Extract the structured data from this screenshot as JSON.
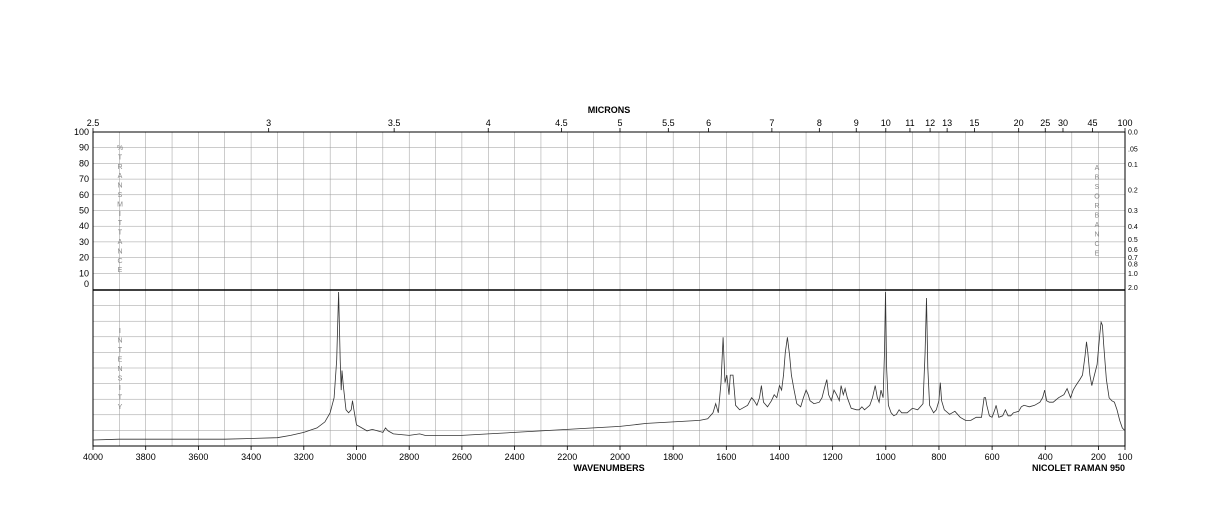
{
  "chart_data": {
    "type": "line",
    "title": "",
    "top_axis_label": "MICRONS",
    "xlabel": "WAVENUMBERS",
    "instrument": "NICOLET RAMAN 950",
    "upper_left_label": "% TRANSMITTANCE",
    "upper_right_label": "ABSORBANCE",
    "lower_left_label": "INTENSITY",
    "xlim": [
      4000,
      100
    ],
    "x_axis_scale": "linear in wavenumber, split scale (4000-2000 and 2000-100)",
    "x_ticks": [
      4000,
      3800,
      3600,
      3400,
      3200,
      3000,
      2800,
      2600,
      2400,
      2200,
      2000,
      1800,
      1600,
      1400,
      1200,
      1000,
      800,
      600,
      400,
      200,
      100
    ],
    "x_tick_labels": [
      "4000",
      "3800",
      "3600",
      "3400",
      "3200",
      "3000",
      "2800",
      "2600",
      "2400",
      "2200",
      "2000",
      "1800",
      "1600",
      "1400",
      "1200",
      "1000",
      "800",
      "600",
      "400",
      "200",
      "100"
    ],
    "micron_ticks": [
      "2.5",
      "3",
      "3.5",
      "4",
      "4.5",
      "5",
      "5.5",
      "6",
      "7",
      "8",
      "9",
      "10",
      "11",
      "12",
      "13",
      "15",
      "20",
      "25",
      "30",
      "45",
      "100"
    ],
    "micron_values": [
      2.5,
      3,
      3.5,
      4,
      4.5,
      5,
      5.5,
      6,
      7,
      8,
      9,
      10,
      11,
      12,
      13,
      15,
      20,
      25,
      30,
      45,
      100
    ],
    "transmittance_ticks": [
      "100",
      "90",
      "80",
      "70",
      "60",
      "50",
      "40",
      "30",
      "20",
      "10",
      "0"
    ],
    "absorbance_ticks": [
      {
        "label": "0.0",
        "value": 0.0
      },
      {
        "label": ".05",
        "value": 0.05
      },
      {
        "label": "0.1",
        "value": 0.1
      },
      {
        "label": "0.2",
        "value": 0.2
      },
      {
        "label": "0.3",
        "value": 0.3
      },
      {
        "label": "0.4",
        "value": 0.4
      },
      {
        "label": "0.5",
        "value": 0.5
      },
      {
        "label": "0.6",
        "value": 0.6
      },
      {
        "label": "0.7",
        "value": 0.7
      },
      {
        "label": "0.8",
        "value": 0.8
      },
      {
        "label": "1.0",
        "value": 1.0
      },
      {
        "label": "2.0",
        "value": 2.0
      }
    ],
    "grid": true,
    "series": [
      {
        "points": [
          [
            4000,
            2
          ],
          [
            3900,
            2.5
          ],
          [
            3800,
            2.5
          ],
          [
            3700,
            2.5
          ],
          [
            3600,
            2.5
          ],
          [
            3500,
            2.5
          ],
          [
            3400,
            3
          ],
          [
            3300,
            3.5
          ],
          [
            3250,
            5
          ],
          [
            3200,
            7
          ],
          [
            3150,
            10
          ],
          [
            3120,
            14
          ],
          [
            3100,
            20
          ],
          [
            3085,
            30
          ],
          [
            3075,
            55
          ],
          [
            3068,
            100
          ],
          [
            3062,
            55
          ],
          [
            3058,
            35
          ],
          [
            3055,
            48
          ],
          [
            3050,
            38
          ],
          [
            3040,
            22
          ],
          [
            3030,
            20
          ],
          [
            3020,
            22
          ],
          [
            3015,
            28
          ],
          [
            3010,
            22
          ],
          [
            3000,
            12
          ],
          [
            2980,
            10
          ],
          [
            2960,
            8
          ],
          [
            2940,
            9
          ],
          [
            2920,
            8
          ],
          [
            2900,
            7
          ],
          [
            2890,
            10
          ],
          [
            2880,
            8
          ],
          [
            2860,
            6
          ],
          [
            2800,
            5
          ],
          [
            2760,
            6
          ],
          [
            2740,
            5
          ],
          [
            2700,
            5
          ],
          [
            2600,
            5
          ],
          [
            2500,
            6
          ],
          [
            2400,
            7
          ],
          [
            2300,
            8
          ],
          [
            2200,
            9
          ],
          [
            2100,
            10
          ],
          [
            2000,
            11
          ],
          [
            1900,
            13
          ],
          [
            1800,
            14
          ],
          [
            1700,
            15
          ],
          [
            1670,
            16
          ],
          [
            1650,
            20
          ],
          [
            1640,
            26
          ],
          [
            1630,
            20
          ],
          [
            1620,
            40
          ],
          [
            1612,
            70
          ],
          [
            1605,
            40
          ],
          [
            1598,
            45
          ],
          [
            1590,
            32
          ],
          [
            1585,
            45
          ],
          [
            1575,
            45
          ],
          [
            1565,
            25
          ],
          [
            1550,
            22
          ],
          [
            1520,
            25
          ],
          [
            1505,
            30
          ],
          [
            1495,
            28
          ],
          [
            1485,
            25
          ],
          [
            1475,
            30
          ],
          [
            1468,
            38
          ],
          [
            1460,
            27
          ],
          [
            1445,
            24
          ],
          [
            1430,
            28
          ],
          [
            1420,
            32
          ],
          [
            1410,
            30
          ],
          [
            1400,
            38
          ],
          [
            1392,
            35
          ],
          [
            1385,
            45
          ],
          [
            1378,
            60
          ],
          [
            1370,
            70
          ],
          [
            1362,
            58
          ],
          [
            1355,
            45
          ],
          [
            1345,
            35
          ],
          [
            1335,
            26
          ],
          [
            1320,
            24
          ],
          [
            1310,
            30
          ],
          [
            1300,
            35
          ],
          [
            1292,
            32
          ],
          [
            1285,
            28
          ],
          [
            1270,
            26
          ],
          [
            1250,
            27
          ],
          [
            1240,
            30
          ],
          [
            1230,
            37
          ],
          [
            1222,
            42
          ],
          [
            1215,
            32
          ],
          [
            1205,
            28
          ],
          [
            1195,
            35
          ],
          [
            1185,
            32
          ],
          [
            1175,
            28
          ],
          [
            1168,
            38
          ],
          [
            1160,
            32
          ],
          [
            1153,
            36
          ],
          [
            1145,
            30
          ],
          [
            1130,
            23
          ],
          [
            1110,
            22
          ],
          [
            1100,
            22
          ],
          [
            1090,
            24
          ],
          [
            1080,
            22
          ],
          [
            1060,
            25
          ],
          [
            1050,
            30
          ],
          [
            1040,
            38
          ],
          [
            1032,
            30
          ],
          [
            1025,
            27
          ],
          [
            1018,
            35
          ],
          [
            1010,
            30
          ],
          [
            1005,
            60
          ],
          [
            1001,
            100
          ],
          [
            997,
            50
          ],
          [
            990,
            25
          ],
          [
            980,
            20
          ],
          [
            970,
            18
          ],
          [
            960,
            19
          ],
          [
            950,
            22
          ],
          [
            940,
            20
          ],
          [
            920,
            20
          ],
          [
            900,
            23
          ],
          [
            880,
            22
          ],
          [
            860,
            26
          ],
          [
            852,
            60
          ],
          [
            847,
            96
          ],
          [
            842,
            50
          ],
          [
            835,
            25
          ],
          [
            820,
            20
          ],
          [
            810,
            22
          ],
          [
            800,
            28
          ],
          [
            795,
            40
          ],
          [
            790,
            28
          ],
          [
            780,
            22
          ],
          [
            760,
            19
          ],
          [
            740,
            21
          ],
          [
            720,
            17
          ],
          [
            700,
            15
          ],
          [
            680,
            15
          ],
          [
            660,
            17
          ],
          [
            640,
            17
          ],
          [
            630,
            30
          ],
          [
            625,
            30
          ],
          [
            620,
            25
          ],
          [
            610,
            18
          ],
          [
            600,
            17
          ],
          [
            590,
            22
          ],
          [
            585,
            25
          ],
          [
            575,
            17
          ],
          [
            560,
            18
          ],
          [
            550,
            22
          ],
          [
            540,
            18
          ],
          [
            530,
            18
          ],
          [
            520,
            20
          ],
          [
            500,
            21
          ],
          [
            490,
            24
          ],
          [
            480,
            25
          ],
          [
            460,
            24
          ],
          [
            440,
            25
          ],
          [
            420,
            27
          ],
          [
            410,
            30
          ],
          [
            402,
            35
          ],
          [
            395,
            28
          ],
          [
            385,
            27
          ],
          [
            370,
            27
          ],
          [
            350,
            30
          ],
          [
            330,
            32
          ],
          [
            318,
            36
          ],
          [
            305,
            30
          ],
          [
            295,
            35
          ],
          [
            285,
            38
          ],
          [
            270,
            42
          ],
          [
            260,
            45
          ],
          [
            250,
            58
          ],
          [
            245,
            67
          ],
          [
            240,
            60
          ],
          [
            232,
            45
          ],
          [
            225,
            38
          ],
          [
            215,
            45
          ],
          [
            205,
            52
          ],
          [
            195,
            72
          ],
          [
            190,
            80
          ],
          [
            185,
            78
          ],
          [
            180,
            65
          ],
          [
            170,
            42
          ],
          [
            160,
            30
          ],
          [
            150,
            28
          ],
          [
            140,
            27
          ],
          [
            130,
            22
          ],
          [
            120,
            15
          ],
          [
            110,
            10
          ],
          [
            100,
            8
          ]
        ]
      }
    ]
  }
}
